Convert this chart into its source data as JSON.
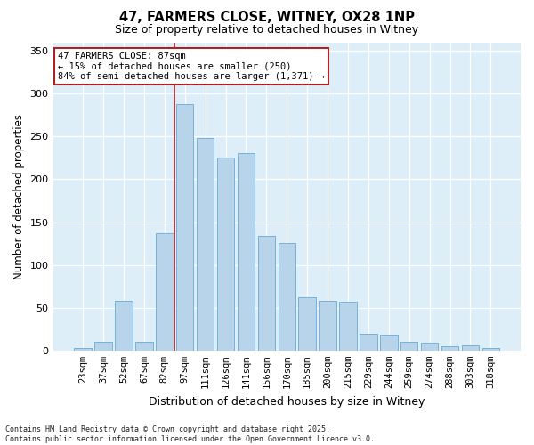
{
  "title_line1": "47, FARMERS CLOSE, WITNEY, OX28 1NP",
  "title_line2": "Size of property relative to detached houses in Witney",
  "xlabel": "Distribution of detached houses by size in Witney",
  "ylabel": "Number of detached properties",
  "categories": [
    "23sqm",
    "37sqm",
    "52sqm",
    "67sqm",
    "82sqm",
    "97sqm",
    "111sqm",
    "126sqm",
    "141sqm",
    "156sqm",
    "170sqm",
    "185sqm",
    "200sqm",
    "215sqm",
    "229sqm",
    "244sqm",
    "259sqm",
    "274sqm",
    "288sqm",
    "303sqm",
    "318sqm"
  ],
  "values": [
    3,
    10,
    58,
    10,
    137,
    288,
    248,
    225,
    231,
    134,
    126,
    62,
    58,
    57,
    20,
    18,
    10,
    9,
    5,
    6,
    3
  ],
  "bar_color": "#b8d4ea",
  "bar_edge_color": "#6aaad4",
  "axes_bg_color": "#ddeef8",
  "fig_bg_color": "#ffffff",
  "grid_color": "#ffffff",
  "marker_color": "#aa2222",
  "annotation_text": "47 FARMERS CLOSE: 87sqm\n← 15% of detached houses are smaller (250)\n84% of semi-detached houses are larger (1,371) →",
  "annotation_box_edge_color": "#aa2222",
  "footer_text": "Contains HM Land Registry data © Crown copyright and database right 2025.\nContains public sector information licensed under the Open Government Licence v3.0.",
  "ylim": [
    0,
    360
  ],
  "yticks": [
    0,
    50,
    100,
    150,
    200,
    250,
    300,
    350
  ],
  "marker_bin_index": 5,
  "title1_fontsize": 10.5,
  "title2_fontsize": 9,
  "ylabel_fontsize": 8.5,
  "xlabel_fontsize": 9,
  "tick_fontsize": 7.5,
  "annotation_fontsize": 7.5,
  "footer_fontsize": 6.0
}
